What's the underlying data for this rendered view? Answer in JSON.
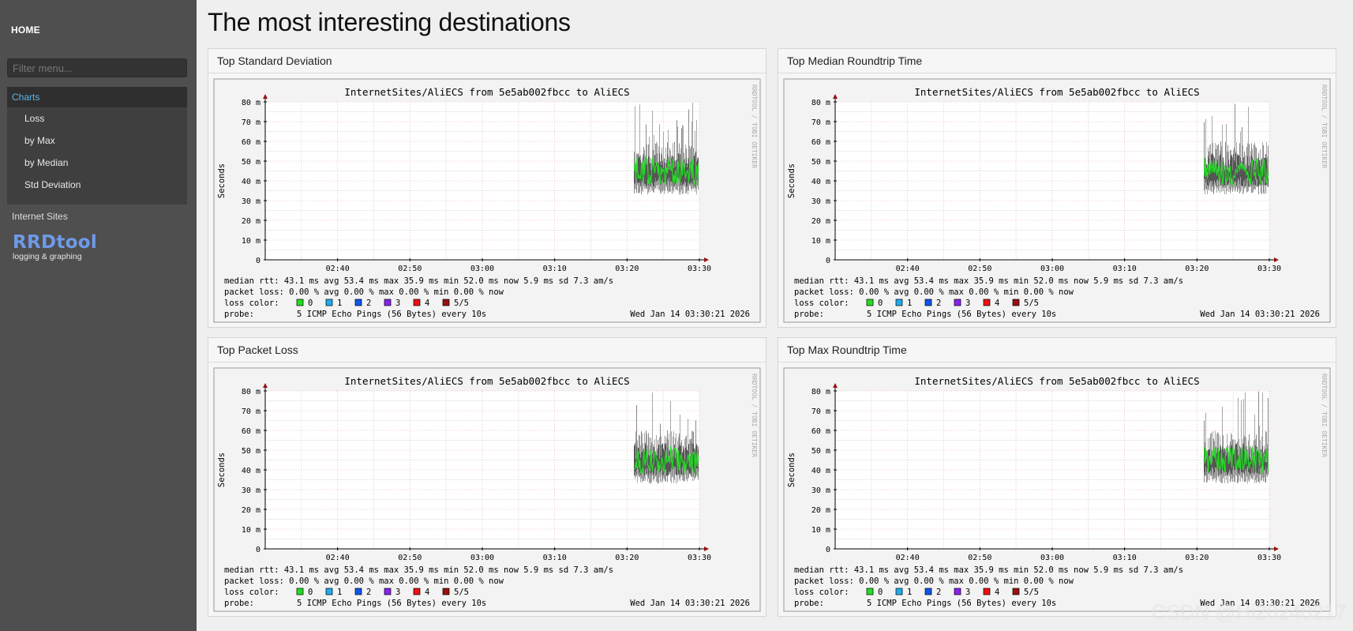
{
  "sidebar": {
    "home_label": "HOME",
    "filter_placeholder": "Filter menu...",
    "charts_label": "Charts",
    "chart_items": [
      {
        "label": "Loss"
      },
      {
        "label": "by Max"
      },
      {
        "label": "by Median"
      },
      {
        "label": "Std Deviation"
      }
    ],
    "internet_sites_label": "Internet Sites",
    "logo": {
      "name": "RRDtool",
      "tagline": "logging & graphing"
    }
  },
  "main": {
    "title": "The most interesting destinations"
  },
  "panels": [
    {
      "title": "Top Standard Deviation"
    },
    {
      "title": "Top Median Roundtrip Time"
    },
    {
      "title": "Top Packet Loss"
    },
    {
      "title": "Top Max Roundtrip Time"
    }
  ],
  "graph": {
    "title": "InternetSites/AliECS from 5e5ab002fbcc to AliECS",
    "ylabel": "Seconds",
    "side_text": "RRDTOOL / TOBI OETIKER",
    "yticks": [
      "80 m",
      "70 m",
      "60 m",
      "50 m",
      "40 m",
      "30 m",
      "20 m",
      "10 m",
      "0"
    ],
    "xticks": [
      "02:40",
      "02:50",
      "03:00",
      "03:10",
      "03:20",
      "03:30"
    ],
    "legend": {
      "rtt_line": "median rtt:  43.1 ms avg  53.4 ms max  35.9 ms min  52.0 ms now  5.9 ms sd  7.3   am/s",
      "loss_line": "packet loss: 0.00 % avg  0.00 % max  0.00 % min  0.00 % now",
      "loss_color_label": "loss color:",
      "loss_colors": [
        {
          "label": "0",
          "color": "#22dd22"
        },
        {
          "label": "1",
          "color": "#22aaee"
        },
        {
          "label": "2",
          "color": "#1155ee"
        },
        {
          "label": "3",
          "color": "#8822ee"
        },
        {
          "label": "4",
          "color": "#ee1111"
        },
        {
          "label": "5/5",
          "color": "#991111"
        }
      ],
      "probe_label": "probe:",
      "probe_text": "5 ICMP Echo Pings (56 Bytes) every 10s",
      "timestamp": "Wed Jan 14 03:30:21 2026"
    }
  },
  "chart_data": {
    "type": "line",
    "title": "InternetSites/AliECS from 5e5ab002fbcc to AliECS",
    "ylabel": "Seconds",
    "xlabel": "",
    "unit": "ms",
    "ylim": [
      0,
      80
    ],
    "x_categories": [
      "02:40",
      "02:50",
      "03:00",
      "03:10",
      "03:20",
      "03:30"
    ],
    "x_range_minutes": [
      "02:30",
      "03:30"
    ],
    "data_start": "03:21",
    "series": [
      {
        "name": "median rtt",
        "avg": 43.1,
        "max": 53.4,
        "min": 35.9,
        "now": 52.0,
        "sd": 5.9
      },
      {
        "name": "packet loss %",
        "avg": 0.0,
        "max": 0.0,
        "min": 0.0,
        "now": 0.0
      }
    ],
    "envelope_range": [
      35,
      80
    ],
    "median_band": [
      38,
      53
    ]
  },
  "watermark": "CSDN @Hi20240217"
}
